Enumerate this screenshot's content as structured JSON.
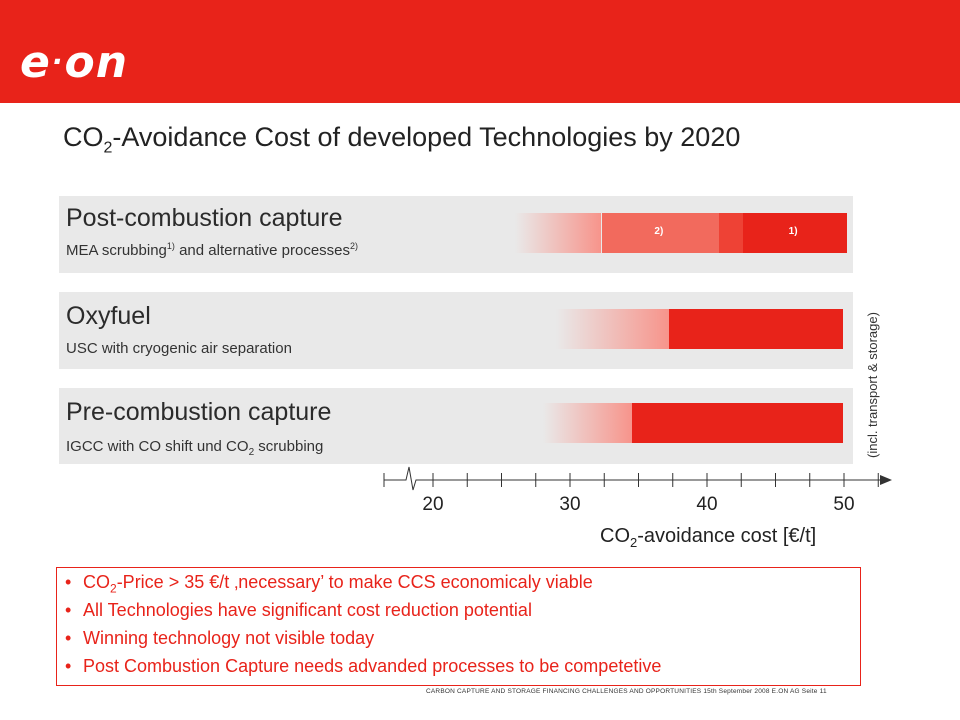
{
  "logo": "e·on",
  "title": {
    "main": "CO",
    "sub": "2",
    "rest": "-Avoidance Cost of developed Technologies by 2020"
  },
  "chart_data": {
    "type": "bar",
    "xlabel": {
      "main": "CO",
      "sub": "2",
      "rest": "-avoidance cost [€/t]"
    },
    "xlim": [
      16,
      53
    ],
    "axis_break_label": "",
    "ticks": [
      20,
      30,
      40,
      50
    ],
    "side_label": "(incl. transport & storage)",
    "categories": [
      {
        "title": "Post-combustion capture",
        "subtitle": {
          "a": "MEA scrubbing",
          "a_sup": "1)",
          "b": " and alternative processes",
          "b_sup": "2)"
        },
        "fade_start": 26,
        "solid_start": 32.3,
        "end": 50.2,
        "segments": [
          {
            "from": 32.3,
            "to": 40.9,
            "color": "#f26a5d",
            "label": "2)"
          },
          {
            "from": 40.9,
            "to": 42.6,
            "color": "#ee4235",
            "label": ""
          },
          {
            "from": 42.6,
            "to": 50.2,
            "color": "#e8231a",
            "label": "1)"
          }
        ]
      },
      {
        "title": "Oxyfuel",
        "subtitle": {
          "a": "USC with cryogenic air separation"
        },
        "fade_start": 29,
        "solid_start": 37.2,
        "end": 49.9,
        "segments": [
          {
            "from": 37.2,
            "to": 49.9,
            "color": "#e8231a",
            "label": ""
          }
        ]
      },
      {
        "title": "Pre-combustion capture",
        "subtitle": {
          "a": "IGCC with CO shift und CO",
          "a_sub": "2",
          "b": " scrubbing"
        },
        "fade_start": 28,
        "solid_start": 34.5,
        "end": 49.9,
        "segments": [
          {
            "from": 34.5,
            "to": 49.9,
            "color": "#e8231a",
            "label": ""
          }
        ]
      }
    ]
  },
  "bullets": [
    {
      "bullet": "•",
      "pre": "CO",
      "sub": "2",
      "text": "-Price > 35 €/t ‚necessary’ to make CCS economicaly viable"
    },
    {
      "bullet": "•",
      "pre": "",
      "sub": "",
      "text": "All Technologies have significant cost reduction potential"
    },
    {
      "bullet": "•",
      "pre": "",
      "sub": "",
      "text": "Winning technology not visible today"
    },
    {
      "bullet": "•",
      "pre": "",
      "sub": "",
      "text": "Post Combustion Capture needs advanded processes to be competetive"
    }
  ],
  "footer": "CARBON CAPTURE AND STORAGE FINANCING CHALLENGES AND OPPORTUNITIES   15th September 2008   E.ON AG   Seite 11",
  "colors": {
    "brand_red": "#e8231a",
    "panel_bg": "#e9e9e9",
    "segment_light": "#f26a5d"
  }
}
